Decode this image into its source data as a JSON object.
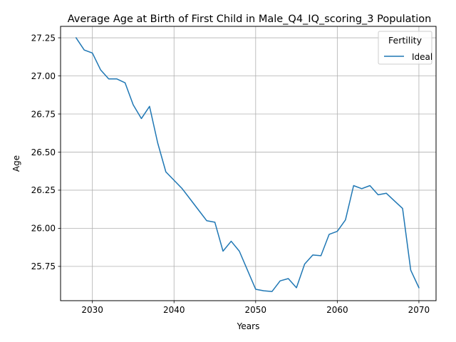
{
  "chart_data": {
    "type": "line",
    "title": "Average Age at Birth of First Child in Male_Q4_IQ_scoring_3 Population",
    "xlabel": "Years",
    "ylabel": "Age",
    "xlim": [
      2026.1,
      2072.1
    ],
    "ylim": [
      25.525,
      27.325
    ],
    "grid": true,
    "legend": {
      "title": "Fertility",
      "placement": "top-right"
    },
    "x_ticks": [
      {
        "value": 2030,
        "label": "2030"
      },
      {
        "value": 2040,
        "label": "2040"
      },
      {
        "value": 2050,
        "label": "2050"
      },
      {
        "value": 2060,
        "label": "2060"
      },
      {
        "value": 2070,
        "label": "2070"
      }
    ],
    "y_ticks": [
      {
        "value": 25.75,
        "label": "25.75"
      },
      {
        "value": 26.0,
        "label": "26.00"
      },
      {
        "value": 26.25,
        "label": "26.25"
      },
      {
        "value": 26.5,
        "label": "26.50"
      },
      {
        "value": 26.75,
        "label": "26.75"
      },
      {
        "value": 27.0,
        "label": "27.00"
      },
      {
        "value": 27.25,
        "label": "27.25"
      }
    ],
    "series": [
      {
        "name": "Ideal",
        "color": "#1f77b4",
        "x": [
          2028,
          2029,
          2030,
          2031,
          2032,
          2033,
          2034,
          2035,
          2036,
          2037,
          2038,
          2039,
          2040,
          2041,
          2042,
          2043,
          2044,
          2045,
          2046,
          2047,
          2048,
          2049,
          2050,
          2051,
          2052,
          2053,
          2054,
          2055,
          2056,
          2057,
          2058,
          2059,
          2060,
          2061,
          2062,
          2063,
          2064,
          2065,
          2066,
          2067,
          2068,
          2069,
          2070
        ],
        "values": [
          27.25,
          27.17,
          27.15,
          27.04,
          26.98,
          26.98,
          26.955,
          26.81,
          26.72,
          26.8,
          26.56,
          26.37,
          26.315,
          26.26,
          26.19,
          26.12,
          26.05,
          26.04,
          25.85,
          25.915,
          25.85,
          25.725,
          25.6,
          25.59,
          25.585,
          25.655,
          25.67,
          25.61,
          25.765,
          25.825,
          25.82,
          25.96,
          25.98,
          26.055,
          26.28,
          26.26,
          26.28,
          26.22,
          26.23,
          26.18,
          26.13,
          25.725,
          25.61
        ]
      }
    ]
  }
}
